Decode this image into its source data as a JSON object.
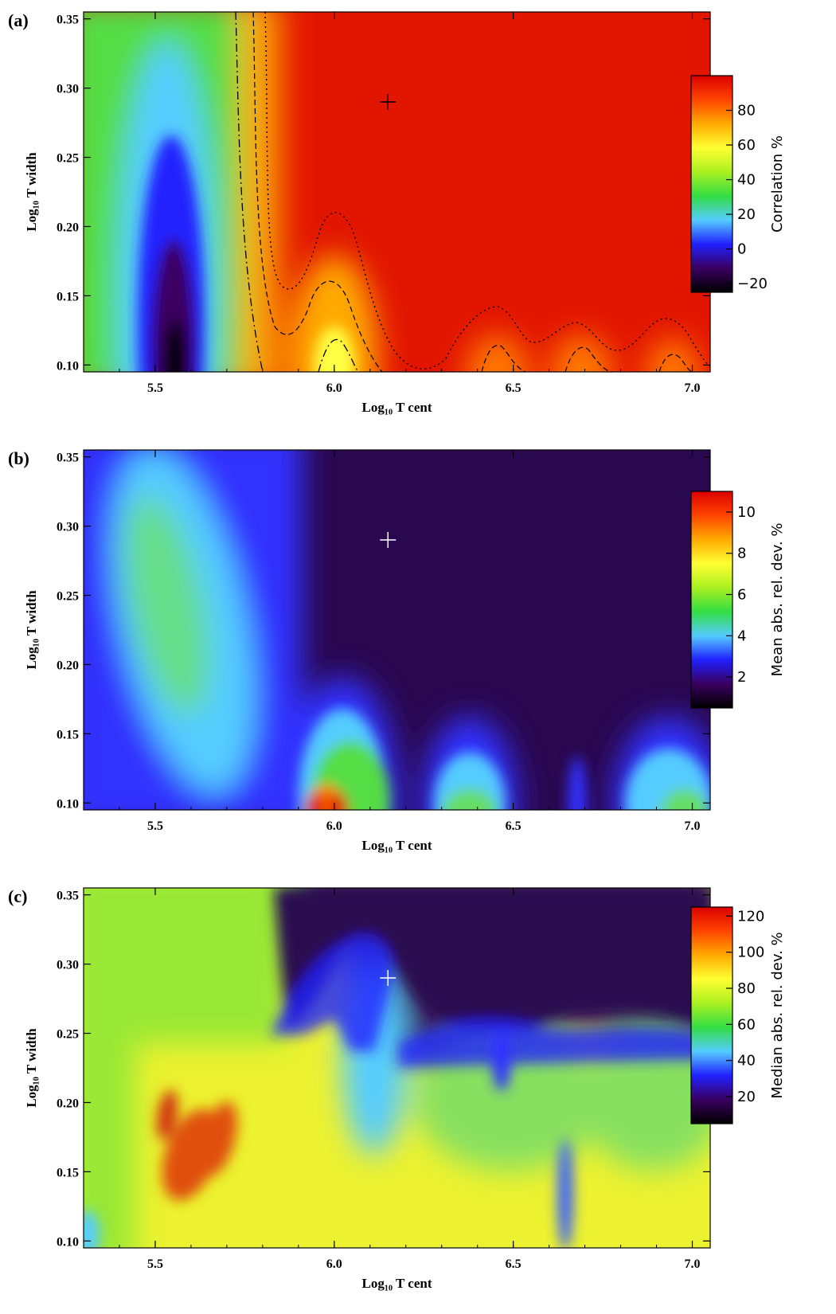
{
  "colors": {
    "colormap": [
      "#000000",
      "#3a0060",
      "#2020ff",
      "#55ccff",
      "#33dd44",
      "#aaf020",
      "#ffff33",
      "#ffaa00",
      "#ff4400",
      "#dd0000"
    ],
    "marker_dark": "#000000",
    "marker_light": "#ffffff"
  },
  "chart_data": [
    {
      "type": "heatmap",
      "panel_label": "(a)",
      "xlabel": "Log₁₀ T cent",
      "ylabel": "Log₁₀ T width",
      "xlim": [
        5.3,
        7.05
      ],
      "ylim": [
        0.095,
        0.355
      ],
      "xticks": [
        "5.5",
        "6.0",
        "6.5",
        "7.0"
      ],
      "yticks": [
        "0.10",
        "0.15",
        "0.20",
        "0.25",
        "0.30",
        "0.35"
      ],
      "colorbar": {
        "label": "Correlation %",
        "range": [
          -25,
          100
        ],
        "ticks": [
          "−20",
          "0",
          "20",
          "40",
          "60",
          "80"
        ]
      },
      "marker": {
        "x": 6.15,
        "y": 0.29
      },
      "contours": [
        "dash-dot",
        "dashed",
        "dotted"
      ]
    },
    {
      "type": "heatmap",
      "panel_label": "(b)",
      "xlabel": "Log₁₀ T cent",
      "ylabel": "Log₁₀ T width",
      "xlim": [
        5.3,
        7.05
      ],
      "ylim": [
        0.095,
        0.355
      ],
      "xticks": [
        "5.5",
        "6.0",
        "6.5",
        "7.0"
      ],
      "yticks": [
        "0.10",
        "0.15",
        "0.20",
        "0.25",
        "0.30",
        "0.35"
      ],
      "colorbar": {
        "label": "Mean abs. rel. dev. %",
        "range": [
          0.5,
          11
        ],
        "ticks": [
          "2",
          "4",
          "6",
          "8",
          "10"
        ]
      },
      "marker": {
        "x": 6.15,
        "y": 0.29
      }
    },
    {
      "type": "heatmap",
      "panel_label": "(c)",
      "xlabel": "Log₁₀ T cent",
      "ylabel": "Log₁₀ T width",
      "xlim": [
        5.3,
        7.05
      ],
      "ylim": [
        0.095,
        0.355
      ],
      "xticks": [
        "5.5",
        "6.0",
        "6.5",
        "7.0"
      ],
      "yticks": [
        "0.10",
        "0.15",
        "0.20",
        "0.25",
        "0.30",
        "0.35"
      ],
      "colorbar": {
        "label": "Median abs. rel. dev. %",
        "range": [
          5,
          125
        ],
        "ticks": [
          "20",
          "40",
          "60",
          "80",
          "100",
          "120"
        ]
      },
      "marker": {
        "x": 6.15,
        "y": 0.29
      }
    }
  ]
}
